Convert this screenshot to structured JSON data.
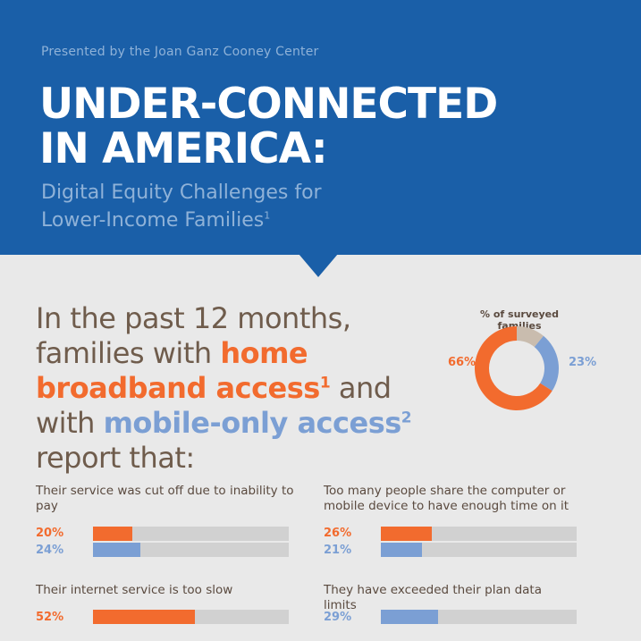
{
  "header": {
    "presented_by": "Presented by the Joan Ganz Cooney Center",
    "title_line1": "UNDER-CONNECTED",
    "title_line2": "IN AMERICA:",
    "subtitle_line1": "Digital Equity Challenges for",
    "subtitle_line2": "Lower-Income Families",
    "subtitle_sup": "1"
  },
  "lead": {
    "part1": "In the past 12 months, families with ",
    "broadband": "home broadband access",
    "broadband_sup": "1",
    "part2": " and with ",
    "mobile": "mobile-only access",
    "mobile_sup": "2",
    "part3": " report that:"
  },
  "colors": {
    "header_bg": "#1a5fa8",
    "broadband": "#f26b2e",
    "mobile": "#7b9fd4",
    "other": "#c9bcae",
    "track": "#d1d1d1",
    "text": "#5a4a3f"
  },
  "chart_data": [
    {
      "type": "pie",
      "title": "% of surveyed families",
      "categories": [
        "home broadband access",
        "mobile-only access",
        "other"
      ],
      "values": [
        66,
        23,
        11
      ],
      "labels": [
        "66%",
        "23%",
        ""
      ]
    },
    {
      "type": "bar",
      "title": "Their service was cut off due to inability to pay",
      "series": [
        {
          "values": [
            20
          ],
          "label": "20%"
        },
        {
          "values": [
            24
          ],
          "label": "24%"
        }
      ],
      "ylim": [
        0,
        100
      ]
    },
    {
      "type": "bar",
      "title": "Too many people share the computer or mobile device to have enough time on it",
      "series": [
        {
          "values": [
            26
          ],
          "label": "26%"
        },
        {
          "values": [
            21
          ],
          "label": "21%"
        }
      ],
      "ylim": [
        0,
        100
      ]
    },
    {
      "type": "bar",
      "title": "Their internet service is too slow",
      "series": [
        {
          "values": [
            52
          ],
          "label": "52%"
        }
      ],
      "ylim": [
        0,
        100
      ]
    },
    {
      "type": "bar",
      "title": "They have exceeded their plan data limits",
      "series": [
        {
          "values": [
            29
          ],
          "label": "29%"
        }
      ],
      "ylim": [
        0,
        100
      ]
    }
  ]
}
